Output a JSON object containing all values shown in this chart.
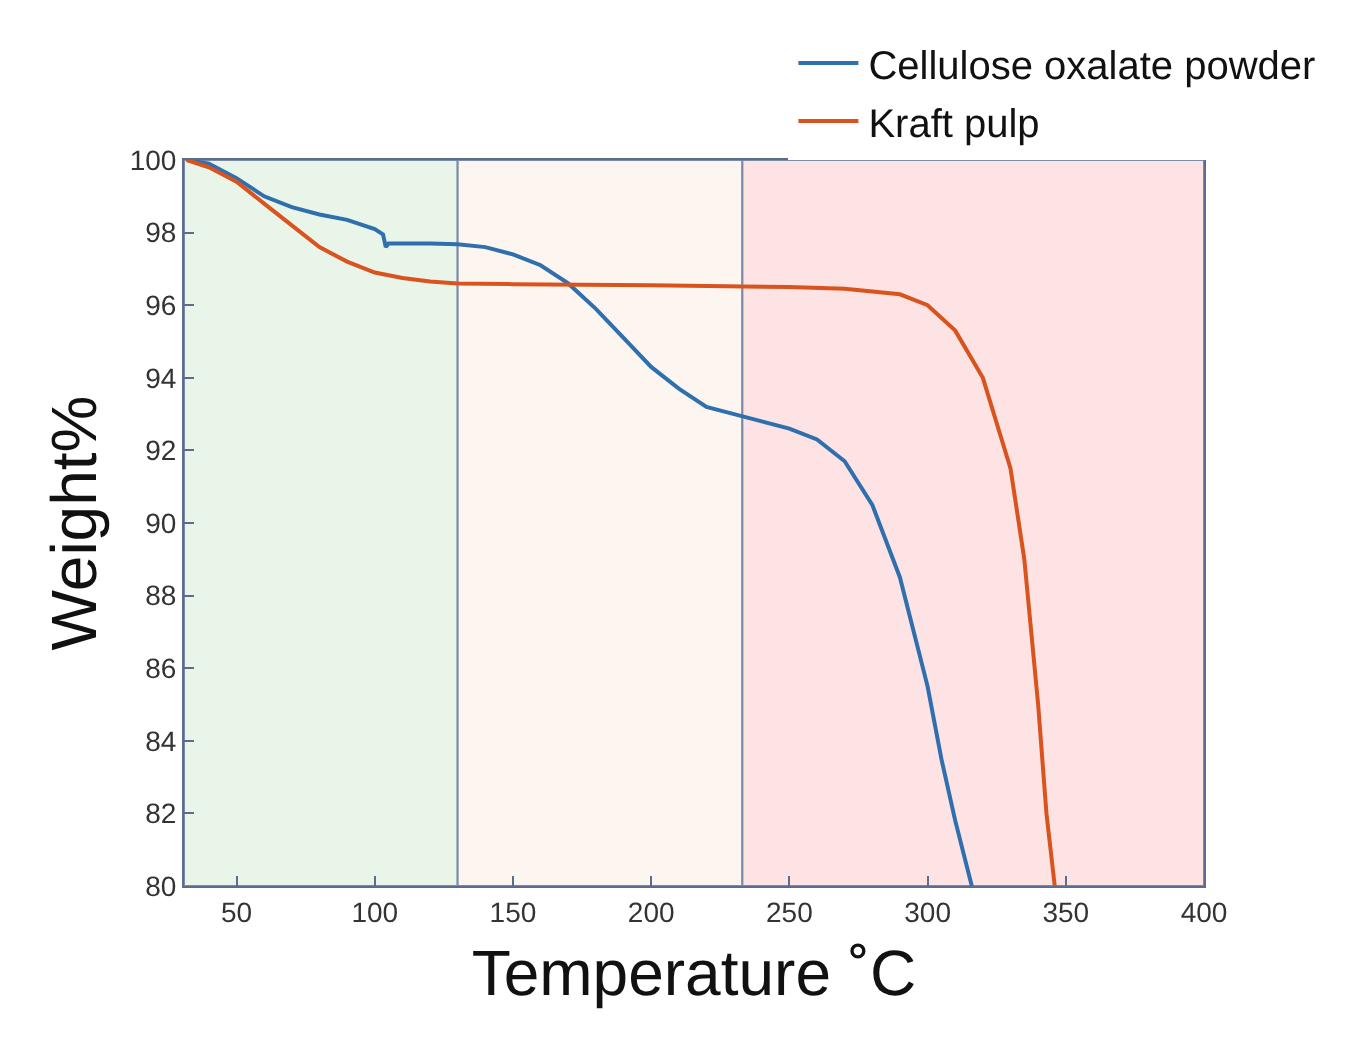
{
  "chart_data": {
    "type": "line",
    "xlabel": "Temperature ˚C",
    "ylabel": "Weight%",
    "xlim": [
      31,
      400
    ],
    "ylim": [
      80,
      100
    ],
    "xticks": [
      50,
      100,
      150,
      200,
      250,
      300,
      350,
      400
    ],
    "yticks": [
      80,
      82,
      84,
      86,
      88,
      90,
      92,
      94,
      96,
      98,
      100
    ],
    "grid": false,
    "legend": "top right",
    "line_style": "solid",
    "marker": "none",
    "bands": [
      {
        "axis": "x",
        "from": 31,
        "to": 130,
        "color": "#e9f5e8"
      },
      {
        "axis": "x",
        "from": 130,
        "to": 233,
        "color": "#fdf6f0"
      },
      {
        "axis": "x",
        "from": 233,
        "to": 400,
        "color": "#fde3e3"
      }
    ],
    "series": [
      {
        "name": "Cellulose oxalate powder",
        "color": "#2f6fae",
        "x": [
          32,
          40,
          50,
          60,
          70,
          80,
          90,
          100,
          103,
          104,
          105,
          120,
          130,
          140,
          150,
          160,
          170,
          180,
          190,
          200,
          210,
          220,
          230,
          240,
          250,
          260,
          270,
          280,
          290,
          300,
          305,
          310,
          316
        ],
        "values": [
          100,
          99.9,
          99.5,
          99.0,
          98.7,
          98.5,
          98.35,
          98.1,
          97.95,
          97.6,
          97.7,
          97.7,
          97.68,
          97.6,
          97.4,
          97.1,
          96.6,
          95.9,
          95.1,
          94.3,
          93.7,
          93.2,
          93.0,
          92.8,
          92.6,
          92.3,
          91.7,
          90.5,
          88.5,
          85.5,
          83.5,
          81.8,
          80
        ]
      },
      {
        "name": "Kraft pulp",
        "color": "#d9531e",
        "x": [
          32,
          40,
          50,
          60,
          70,
          80,
          90,
          100,
          110,
          120,
          130,
          150,
          200,
          250,
          270,
          290,
          300,
          310,
          320,
          330,
          335,
          340,
          343,
          346
        ],
        "values": [
          100,
          99.8,
          99.4,
          98.8,
          98.2,
          97.6,
          97.2,
          96.9,
          96.75,
          96.65,
          96.6,
          96.58,
          96.55,
          96.5,
          96.45,
          96.3,
          96.0,
          95.3,
          94.0,
          91.5,
          89,
          85,
          82,
          80
        ]
      }
    ]
  }
}
